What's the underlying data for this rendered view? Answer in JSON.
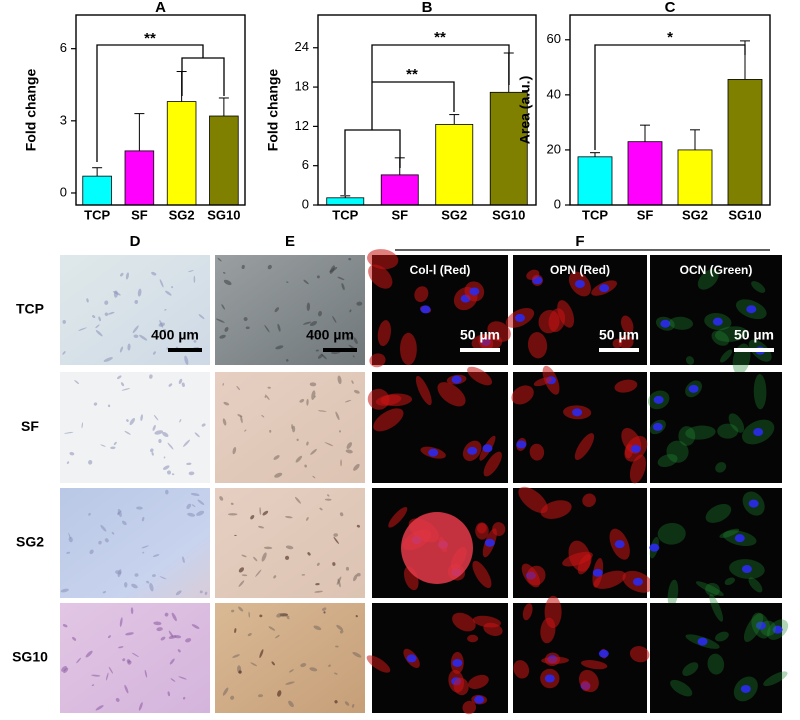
{
  "chart_data": [
    {
      "type": "bar",
      "title": "A",
      "y_label": "Fold change",
      "categories": [
        "TCP",
        "SF",
        "SG2",
        "SG10"
      ],
      "values": [
        0.7,
        1.75,
        3.8,
        3.2
      ],
      "errors": [
        0.35,
        1.55,
        1.25,
        0.75
      ],
      "colors": [
        "#00ffff",
        "#ff00ff",
        "#ffff00",
        "#808000"
      ],
      "ylim": [
        -0.5,
        7.4
      ],
      "yticks": [
        0,
        3,
        6
      ],
      "annotations": [
        "**"
      ]
    },
    {
      "type": "bar",
      "title": "B",
      "y_label": "Fold change",
      "categories": [
        "TCP",
        "SF",
        "SG2",
        "SG10"
      ],
      "values": [
        1.1,
        4.6,
        12.3,
        17.2
      ],
      "errors": [
        0.3,
        2.6,
        1.5,
        6
      ],
      "colors": [
        "#00ffff",
        "#ff00ff",
        "#ffff00",
        "#808000"
      ],
      "ylim": [
        0,
        29
      ],
      "yticks": [
        0,
        6,
        12,
        18,
        24
      ],
      "annotations": [
        "**",
        "**"
      ]
    },
    {
      "type": "bar",
      "title": "C",
      "y_label": "Area (a.u.)",
      "categories": [
        "TCP",
        "SF",
        "SG2",
        "SG10"
      ],
      "values": [
        17.5,
        23,
        20,
        45.6
      ],
      "errors": [
        1.5,
        6,
        7.3,
        14
      ],
      "colors": [
        "#00ffff",
        "#ff00ff",
        "#ffff00",
        "#808000"
      ],
      "ylim": [
        0,
        69
      ],
      "yticks": [
        0,
        20,
        40,
        60
      ],
      "annotations": [
        "*"
      ]
    }
  ],
  "panels": {
    "labels": [
      "D",
      "E",
      "F"
    ],
    "rows": [
      "TCP",
      "SF",
      "SG2",
      "SG10"
    ],
    "stains": [
      "Col-Ⅰ (Red)",
      "OPN (Red)",
      "OCN (Green)"
    ],
    "scale_bars": [
      "400 µm",
      "400 µm",
      "50 µm",
      "50 µm",
      "50 µm"
    ]
  }
}
